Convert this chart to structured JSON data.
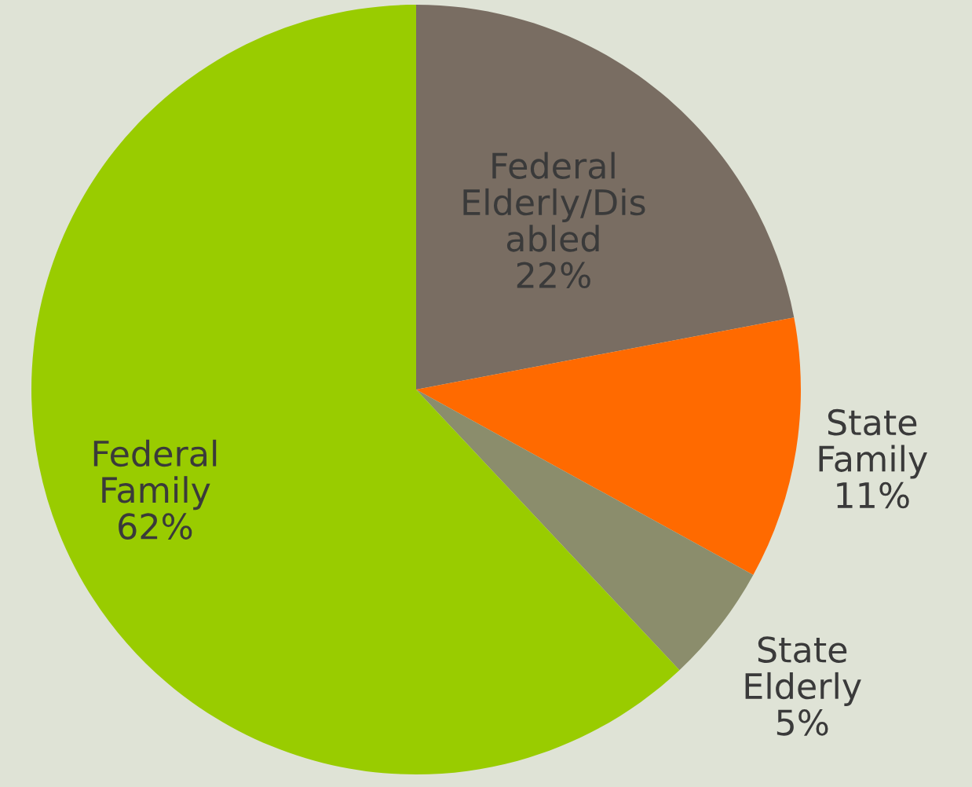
{
  "chart_data": {
    "type": "pie",
    "categories": [
      "Federal\nElderly/Dis\nabled",
      "State\nFamily",
      "State\nElderly",
      "Federal\nFamily"
    ],
    "values": [
      22,
      11,
      5,
      62
    ],
    "value_labels": [
      "22%",
      "11%",
      "5%",
      "62%"
    ],
    "colors": [
      "#796d62",
      "#ff6a00",
      "#8b8d6c",
      "#99cc00"
    ]
  }
}
